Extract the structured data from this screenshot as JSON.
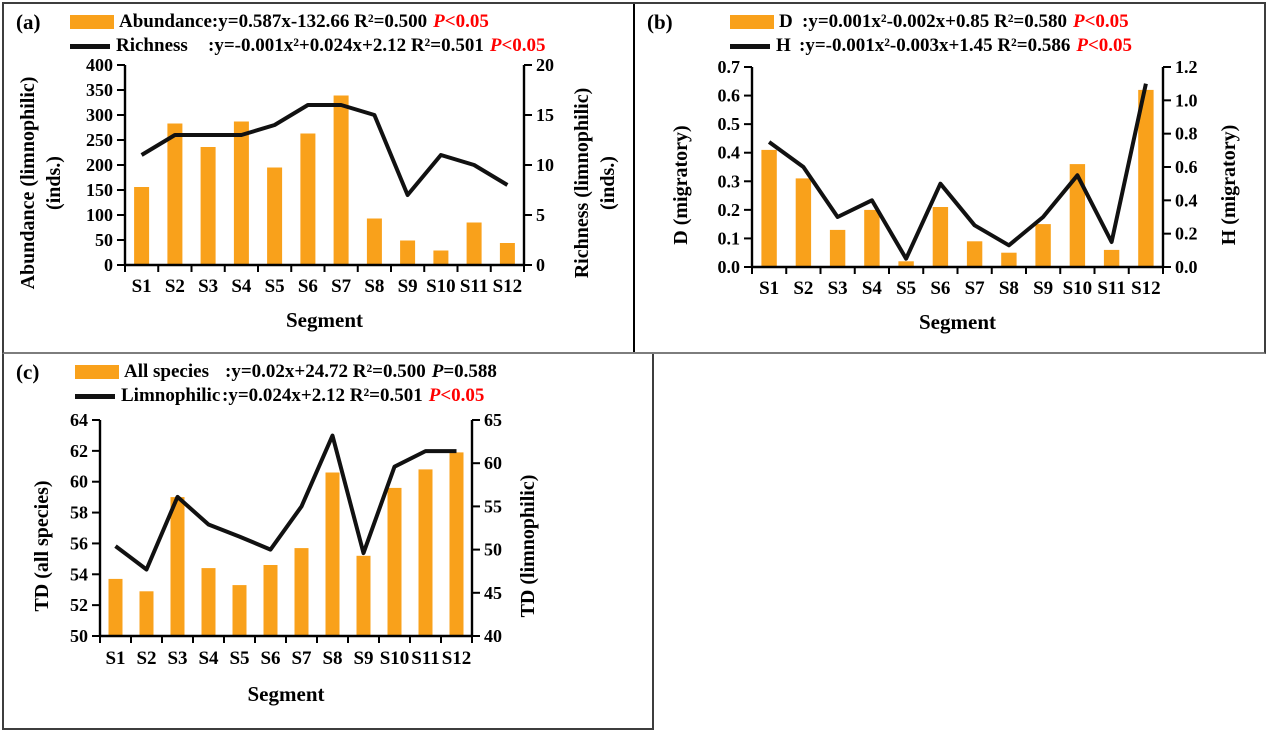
{
  "colors": {
    "bar": "#F9A11B",
    "line": "#111111",
    "significant_p": "#FF0000",
    "nonsignificant_p": "#000000",
    "axis": "#000000"
  },
  "chart_data": [
    {
      "panel": "(a)",
      "type": "bar-line-dual-axis",
      "categories": [
        "S1",
        "S2",
        "S3",
        "S4",
        "S5",
        "S6",
        "S7",
        "S8",
        "S9",
        "S10",
        "S11",
        "S12"
      ],
      "xlabel": "Segment",
      "bar_series": {
        "name": "Abundance",
        "axis": "left",
        "values": [
          156,
          283,
          236,
          287,
          195,
          263,
          339,
          93,
          49,
          29,
          85,
          44
        ]
      },
      "line_series": {
        "name": "Richness",
        "axis": "right",
        "values": [
          11,
          13,
          13,
          13,
          14,
          16,
          16,
          15,
          7,
          11,
          10,
          8
        ]
      },
      "left_axis": {
        "title_lines": [
          "Abundance (limnophilic)",
          "(inds.)"
        ],
        "min": 0,
        "max": 400,
        "tick_labels": [
          "0",
          "50",
          "100",
          "150",
          "200",
          "250",
          "300",
          "350",
          "400"
        ]
      },
      "right_axis": {
        "title_lines": [
          "Richness (limnophilic)",
          "(inds.)"
        ],
        "min": 0,
        "max": 20,
        "tick_labels": [
          "0",
          "5",
          "10",
          "15",
          "20"
        ]
      },
      "legend": [
        {
          "swatch": "bar",
          "name": "Abundance",
          "eq": ":y=0.587x-132.66 R²=0.500",
          "p": "P<0.05",
          "p_color": "#FF0000"
        },
        {
          "swatch": "line",
          "name": "Richness",
          "eq": ":y=-0.001x²+0.024x+2.12 R²=0.501",
          "p": "P<0.05",
          "p_color": "#FF0000"
        }
      ]
    },
    {
      "panel": "(b)",
      "type": "bar-line-dual-axis",
      "categories": [
        "S1",
        "S2",
        "S3",
        "S4",
        "S5",
        "S6",
        "S7",
        "S8",
        "S9",
        "S10",
        "S11",
        "S12"
      ],
      "xlabel": "Segment",
      "bar_series": {
        "name": "D",
        "axis": "left",
        "values": [
          0.41,
          0.31,
          0.13,
          0.2,
          0.02,
          0.21,
          0.09,
          0.05,
          0.15,
          0.36,
          0.06,
          0.62
        ]
      },
      "line_series": {
        "name": "H",
        "axis": "right",
        "values": [
          0.75,
          0.6,
          0.3,
          0.4,
          0.05,
          0.5,
          0.25,
          0.13,
          0.3,
          0.55,
          0.15,
          1.1
        ]
      },
      "left_axis": {
        "title_lines": [
          "D (migratory)"
        ],
        "min": 0,
        "max": 0.7,
        "tick_labels": [
          "0.0",
          "0.1",
          "0.2",
          "0.3",
          "0.4",
          "0.5",
          "0.6",
          "0.7"
        ]
      },
      "right_axis": {
        "title_lines": [
          "H (migratory)"
        ],
        "min": 0,
        "max": 1.2,
        "tick_labels": [
          "0.0",
          "0.2",
          "0.4",
          "0.6",
          "0.8",
          "1.0",
          "1.2"
        ]
      },
      "legend": [
        {
          "swatch": "bar",
          "name": "D",
          "eq": ":y=0.001x²-0.002x+0.85 R²=0.580",
          "p": "P<0.05",
          "p_color": "#FF0000"
        },
        {
          "swatch": "line",
          "name": "H",
          "eq": ":y=-0.001x²-0.003x+1.45 R²=0.586",
          "p": "P<0.05",
          "p_color": "#FF0000"
        }
      ]
    },
    {
      "panel": "(c)",
      "type": "bar-line-dual-axis",
      "categories": [
        "S1",
        "S2",
        "S3",
        "S4",
        "S5",
        "S6",
        "S7",
        "S8",
        "S9",
        "S10",
        "S11",
        "S12"
      ],
      "xlabel": "Segment",
      "bar_series": {
        "name": "All species",
        "axis": "left",
        "values": [
          53.7,
          52.9,
          59.0,
          54.4,
          53.3,
          54.6,
          55.7,
          60.6,
          55.2,
          59.6,
          60.8,
          61.9
        ]
      },
      "line_series": {
        "name": "Limnophilic",
        "axis": "right",
        "values": [
          50.4,
          47.7,
          56.1,
          52.9,
          51.5,
          50.0,
          55.0,
          63.2,
          49.6,
          59.6,
          61.4,
          61.4
        ]
      },
      "left_axis": {
        "title_lines": [
          "TD (all species)"
        ],
        "min": 50,
        "max": 64,
        "tick_labels": [
          "50",
          "52",
          "54",
          "56",
          "58",
          "60",
          "62",
          "64"
        ]
      },
      "right_axis": {
        "title_lines": [
          "TD (limnophilic)"
        ],
        "min": 40,
        "max": 65,
        "tick_labels": [
          "40",
          "45",
          "50",
          "55",
          "60",
          "65"
        ]
      },
      "legend": [
        {
          "swatch": "bar",
          "name": "All species",
          "eq": ":y=0.02x+24.72 R²=0.500",
          "p": "P=0.588",
          "p_color": "#000000"
        },
        {
          "swatch": "line",
          "name": "Limnophilic",
          "eq": ":y=0.024x+2.12 R²=0.501",
          "p": "P<0.05",
          "p_color": "#FF0000"
        }
      ]
    }
  ]
}
